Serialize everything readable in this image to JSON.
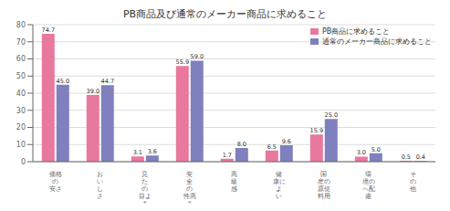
{
  "chart_data": {
    "type": "bar",
    "title": "PB商品及び通常のメーカー商品に求めること",
    "categories": [
      "価格\nの\n安さ",
      "お\nい\nし\nさ",
      "見\nた\nの\n目よ\nさ",
      "安\n全\nの\n性高\nさ",
      "高\n級\n感",
      "健\n康に\nよ\nい",
      "国\n産の\n原使\n料用",
      "環\n境の\nへ配\n慮",
      "そ\nの\n他"
    ],
    "series": [
      {
        "name": "PB商品に求めること",
        "color": "#E8789E",
        "values": [
          74.7,
          39.0,
          3.1,
          55.9,
          1.7,
          6.5,
          15.9,
          3.0,
          0.5
        ],
        "value_labels": [
          "74.7",
          "39.0",
          "3.1",
          "55.9",
          "1.7",
          "6.5",
          "15.9",
          "3.0",
          "0.5"
        ]
      },
      {
        "name": "通常のメーカー商品に求めること",
        "color": "#8080BE",
        "values": [
          45.0,
          44.7,
          3.6,
          59.0,
          8.0,
          9.6,
          25.0,
          5.0,
          0.4
        ],
        "value_labels": [
          "45.0",
          "44.7",
          "3.6",
          "59.0",
          "8.0",
          "9.6",
          "25.0",
          "5.0",
          "0.4"
        ]
      }
    ],
    "ylim": [
      0,
      80
    ],
    "yticks": [
      0,
      10,
      20,
      30,
      40,
      50,
      60,
      70,
      80
    ],
    "grid": true,
    "legend": "upper right",
    "data_labels": true
  }
}
